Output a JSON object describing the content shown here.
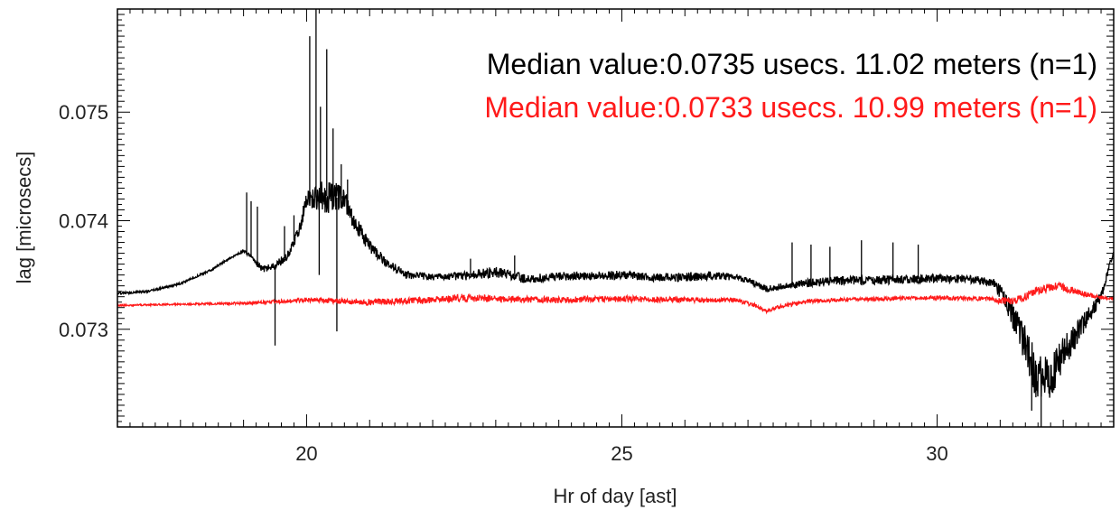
{
  "chart_data": {
    "type": "line",
    "title": "",
    "xlabel": "Hr of day [ast]",
    "ylabel": "lag [microsecs]",
    "xlim": [
      17.0,
      32.8
    ],
    "ylim": [
      0.0721,
      0.07595
    ],
    "x_ticks": [
      20,
      25,
      30
    ],
    "y_ticks": [
      0.073,
      0.074,
      0.075
    ],
    "x_tick_labels": [
      "20",
      "25",
      "30"
    ],
    "y_tick_labels": [
      "0.073",
      "0.074",
      "0.075"
    ],
    "grid": false,
    "annotations": [
      {
        "text": "Median value:0.0735 usecs.  11.02 meters (n=1)",
        "color": "#000000"
      },
      {
        "text": "Median value:0.0733 usecs.  10.99 meters (n=1)",
        "color": "#ff1a1a"
      }
    ],
    "series": [
      {
        "color": "#000000",
        "x": [
          17.0,
          17.5,
          18.0,
          18.5,
          18.8,
          19.0,
          19.1,
          19.3,
          19.5,
          19.7,
          19.9,
          20.0,
          20.3,
          20.6,
          20.8,
          21.0,
          21.3,
          21.6,
          22.0,
          22.5,
          23.0,
          23.5,
          24.0,
          24.5,
          25.0,
          25.5,
          26.0,
          26.5,
          26.8,
          27.0,
          27.3,
          27.6,
          28.0,
          28.5,
          29.0,
          29.5,
          30.0,
          30.5,
          30.9,
          31.1,
          31.3,
          31.5,
          31.6,
          31.8,
          32.0,
          32.2,
          32.4,
          32.6,
          32.8
        ],
        "y": [
          0.07333,
          0.07335,
          0.07342,
          0.07355,
          0.07366,
          0.07372,
          0.07368,
          0.07355,
          0.07358,
          0.07368,
          0.07395,
          0.0742,
          0.07423,
          0.0742,
          0.07395,
          0.07376,
          0.0736,
          0.0735,
          0.07348,
          0.07349,
          0.07353,
          0.07346,
          0.07349,
          0.07349,
          0.0735,
          0.07348,
          0.07348,
          0.07349,
          0.07348,
          0.07345,
          0.07337,
          0.0734,
          0.07343,
          0.07345,
          0.07345,
          0.07346,
          0.07347,
          0.07346,
          0.07343,
          0.07325,
          0.073,
          0.0727,
          0.0725,
          0.07255,
          0.07278,
          0.07295,
          0.07312,
          0.0733,
          0.07372
        ],
        "band": [
          1e-05,
          1e-05,
          1e-05,
          1e-05,
          1e-05,
          1e-05,
          2e-05,
          3e-05,
          4e-05,
          4e-05,
          6e-05,
          8e-05,
          0.00016,
          0.00012,
          8e-05,
          6e-05,
          4e-05,
          4e-05,
          3e-05,
          4e-05,
          5e-05,
          4e-05,
          4e-05,
          4e-05,
          4e-05,
          4e-05,
          4e-05,
          4e-05,
          3e-05,
          3e-05,
          3e-05,
          3e-05,
          4e-05,
          4e-05,
          4e-05,
          4e-05,
          4e-05,
          4e-05,
          4e-05,
          0.0001,
          0.00015,
          0.0002,
          0.00025,
          0.00022,
          0.00016,
          0.00012,
          8e-05,
          5e-05,
          2e-05
        ],
        "spikes": [
          {
            "x": 19.05,
            "y": 0.07426
          },
          {
            "x": 19.12,
            "y": 0.07418
          },
          {
            "x": 19.22,
            "y": 0.07413
          },
          {
            "x": 19.5,
            "y": 0.07285
          },
          {
            "x": 19.65,
            "y": 0.07395
          },
          {
            "x": 19.8,
            "y": 0.07405
          },
          {
            "x": 20.05,
            "y": 0.0757
          },
          {
            "x": 20.15,
            "y": 0.07595
          },
          {
            "x": 20.22,
            "y": 0.07505
          },
          {
            "x": 20.32,
            "y": 0.07558
          },
          {
            "x": 20.42,
            "y": 0.07485
          },
          {
            "x": 20.48,
            "y": 0.07298
          },
          {
            "x": 20.55,
            "y": 0.07452
          },
          {
            "x": 20.65,
            "y": 0.07438
          },
          {
            "x": 20.2,
            "y": 0.0735
          },
          {
            "x": 27.7,
            "y": 0.0738
          },
          {
            "x": 28.0,
            "y": 0.07378
          },
          {
            "x": 28.3,
            "y": 0.07376
          },
          {
            "x": 28.8,
            "y": 0.07382
          },
          {
            "x": 29.3,
            "y": 0.0738
          },
          {
            "x": 29.7,
            "y": 0.07378
          },
          {
            "x": 23.3,
            "y": 0.07368
          },
          {
            "x": 22.6,
            "y": 0.07365
          },
          {
            "x": 31.65,
            "y": 0.0721
          },
          {
            "x": 31.5,
            "y": 0.07225
          }
        ]
      },
      {
        "color": "#ff1a1a",
        "x": [
          17.0,
          18.0,
          19.0,
          20.0,
          21.0,
          22.0,
          22.5,
          23.0,
          24.0,
          25.0,
          26.0,
          26.8,
          27.1,
          27.3,
          27.6,
          28.0,
          29.0,
          30.0,
          30.8,
          31.0,
          31.3,
          31.6,
          31.9,
          32.2,
          32.5,
          32.8
        ],
        "y": [
          0.07322,
          0.07323,
          0.07324,
          0.07327,
          0.07325,
          0.07327,
          0.07329,
          0.07328,
          0.07327,
          0.07328,
          0.07327,
          0.07327,
          0.07322,
          0.07317,
          0.07322,
          0.07326,
          0.07328,
          0.07329,
          0.07328,
          0.07326,
          0.07327,
          0.07336,
          0.0734,
          0.07335,
          0.0733,
          0.07328
        ],
        "band": [
          8e-06,
          8e-06,
          1.2e-05,
          2e-05,
          3e-05,
          3e-05,
          4e-05,
          3e-05,
          3e-05,
          3e-05,
          2.5e-05,
          2e-05,
          2e-05,
          2e-05,
          2e-05,
          2e-05,
          2e-05,
          2e-05,
          2e-05,
          3e-05,
          4e-05,
          4e-05,
          4e-05,
          3e-05,
          2e-05,
          1e-05
        ]
      }
    ]
  }
}
